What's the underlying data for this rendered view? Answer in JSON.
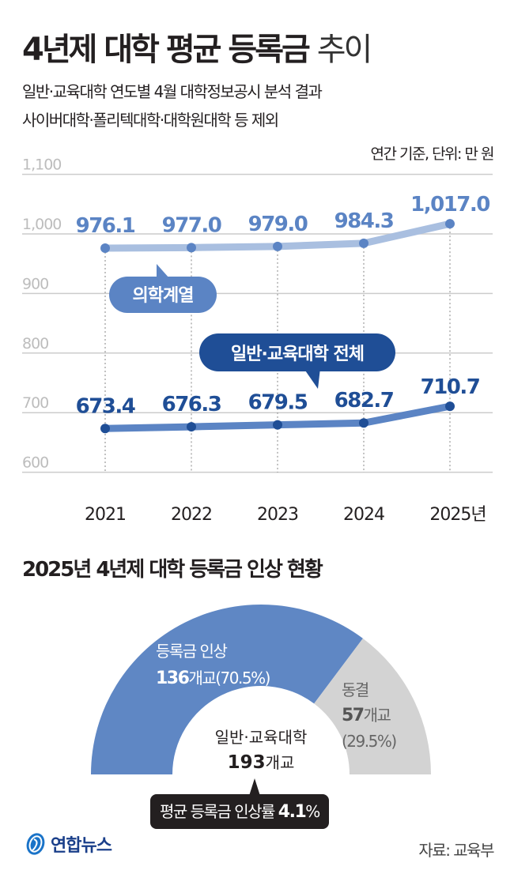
{
  "header": {
    "title_bold": "4년제 대학 평균 등록금",
    "title_light": "추이",
    "subtitle_line1": "일반·교육대학 연도별 4월 대학정보공시 분석 결과",
    "subtitle_line2": "사이버대학·폴리텍대학·대학원대학 등 제외",
    "unit_note": "연간 기준, 단위: 만 원"
  },
  "colors": {
    "medical_line": "#a9bfe0",
    "medical_point": "#5b84c4",
    "medical_label": "#5b84c4",
    "overall_line": "#5b84c4",
    "overall_point": "#1f4e96",
    "overall_label": "#1f4e96",
    "grid": "#cccccc",
    "donut_rise": "#5f87c4",
    "donut_freeze": "#d3d3d3",
    "badge_bg": "#231f20"
  },
  "chart_data": [
    {
      "type": "line",
      "title": "4년제 대학 평균 등록금 추이",
      "subtitle": "일반·교육대학 연도별 4월 대학정보공시 분석 결과 / 사이버대학·폴리텍대학·대학원대학 등 제외",
      "ylabel": "연간 기준, 단위: 만 원",
      "xlabel": "",
      "categories": [
        "2021",
        "2022",
        "2023",
        "2024",
        "2025년"
      ],
      "x_tick_labels": [
        "2021",
        "2022",
        "2023",
        "2024",
        "2025년"
      ],
      "y_tick_labels": [
        "1,100",
        "1,000",
        "900",
        "800",
        "700",
        "600"
      ],
      "ylim": [
        600,
        1100
      ],
      "grid": true,
      "series": [
        {
          "name": "의학계열",
          "values": [
            976.1,
            977.0,
            979.0,
            984.3,
            1017.0
          ],
          "labels": [
            "976.1",
            "977.0",
            "979.0",
            "984.3",
            "1,017.0"
          ]
        },
        {
          "name": "일반·교육대학 전체",
          "values": [
            673.4,
            676.3,
            679.5,
            682.7,
            710.7
          ],
          "labels": [
            "673.4",
            "676.3",
            "679.5",
            "682.7",
            "710.7"
          ]
        }
      ]
    },
    {
      "type": "pie",
      "style": "half-donut",
      "title": "2025년 4년제 대학 등록금 인상 현황",
      "center_label": "일반·교육대학",
      "center_value": "193개교",
      "total": 193,
      "slices": [
        {
          "name": "등록금 인상",
          "value": 136,
          "unit": "개교",
          "percent": 70.5
        },
        {
          "name": "동결",
          "value": 57,
          "unit": "개교",
          "percent": 29.5
        }
      ],
      "annotation": "평균 등록금 인상률 4.1%"
    }
  ],
  "donut": {
    "title": "2025년 4년제 대학 등록금 인상 현황",
    "rise_name": "등록금 인상",
    "rise_count": "136",
    "rise_unit": "개교",
    "rise_pct": "(70.5%)",
    "freeze_name": "동결",
    "freeze_count": "57",
    "freeze_unit": "개교",
    "freeze_pct": "(29.5%)",
    "center_name": "일반·교육대학",
    "center_count": "193",
    "center_unit": "개교",
    "avg_text": "평균 등록금 인상률",
    "avg_value": "4.1",
    "avg_unit": "%"
  },
  "footer": {
    "logo_text": "연합뉴스",
    "source": "자료: 교육부"
  }
}
